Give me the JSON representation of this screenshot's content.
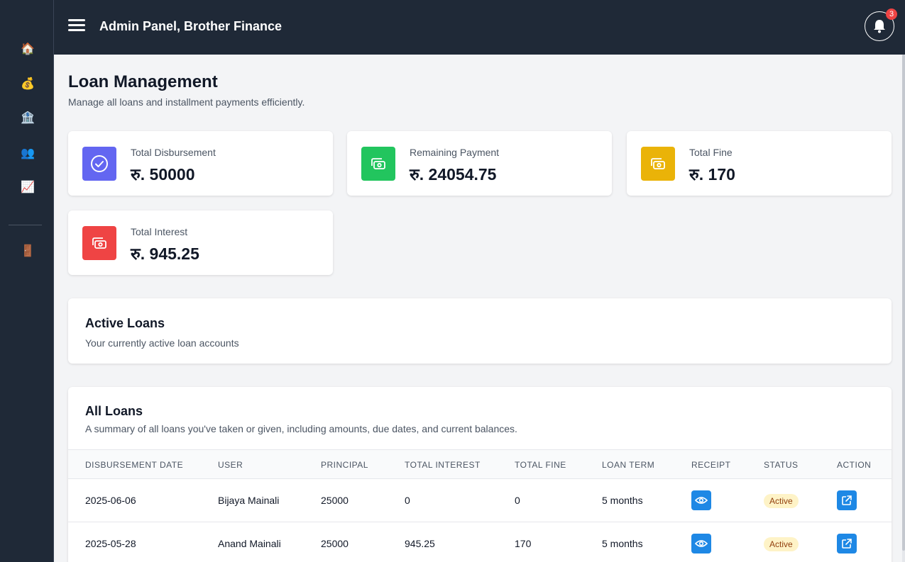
{
  "header": {
    "title": "Admin Panel, Brother Finance",
    "notification_count": "3"
  },
  "sidebar": {
    "items": [
      {
        "icon": "home-icon",
        "glyph": "🏠"
      },
      {
        "icon": "money-bag-icon",
        "glyph": "💰"
      },
      {
        "icon": "bank-icon",
        "glyph": "🏦"
      },
      {
        "icon": "users-icon",
        "glyph": "👥"
      },
      {
        "icon": "chart-icon",
        "glyph": "📈"
      },
      {
        "icon": "door-icon",
        "glyph": "🚪"
      }
    ]
  },
  "page": {
    "title": "Loan Management",
    "subtitle": "Manage all loans and installment payments efficiently."
  },
  "stats": [
    {
      "label": "Total Disbursement",
      "value": "रु. 50000",
      "color": "#6366f1",
      "icon": "check-circle-icon"
    },
    {
      "label": "Remaining Payment",
      "value": "रु. 24054.75",
      "color": "#22c55e",
      "icon": "cash-icon"
    },
    {
      "label": "Total Fine",
      "value": "रु. 170",
      "color": "#eab308",
      "icon": "cash-icon"
    },
    {
      "label": "Total Interest",
      "value": "रु. 945.25",
      "color": "#ef4444",
      "icon": "cash-icon"
    }
  ],
  "active_loans": {
    "title": "Active Loans",
    "description": "Your currently active loan accounts"
  },
  "all_loans": {
    "title": "All Loans",
    "description": "A summary of all loans you've taken or given, including amounts, due dates, and current balances.",
    "columns": [
      "DISBURSEMENT DATE",
      "USER",
      "PRINCIPAL",
      "TOTAL INTEREST",
      "TOTAL FINE",
      "LOAN TERM",
      "RECEIPT",
      "STATUS",
      "ACTION"
    ],
    "rows": [
      {
        "date": "2025-06-06",
        "user": "Bijaya Mainali",
        "principal": "25000",
        "interest": "0",
        "fine": "0",
        "term": "5 months",
        "status": "Active"
      },
      {
        "date": "2025-05-28",
        "user": "Anand Mainali",
        "principal": "25000",
        "interest": "945.25",
        "fine": "170",
        "term": "5 months",
        "status": "Active"
      }
    ]
  },
  "colors": {
    "sidebar_bg": "#1f2937",
    "accent_blue": "#1e88e5",
    "badge_active_bg": "#fef3c7",
    "badge_active_text": "#92400e"
  }
}
